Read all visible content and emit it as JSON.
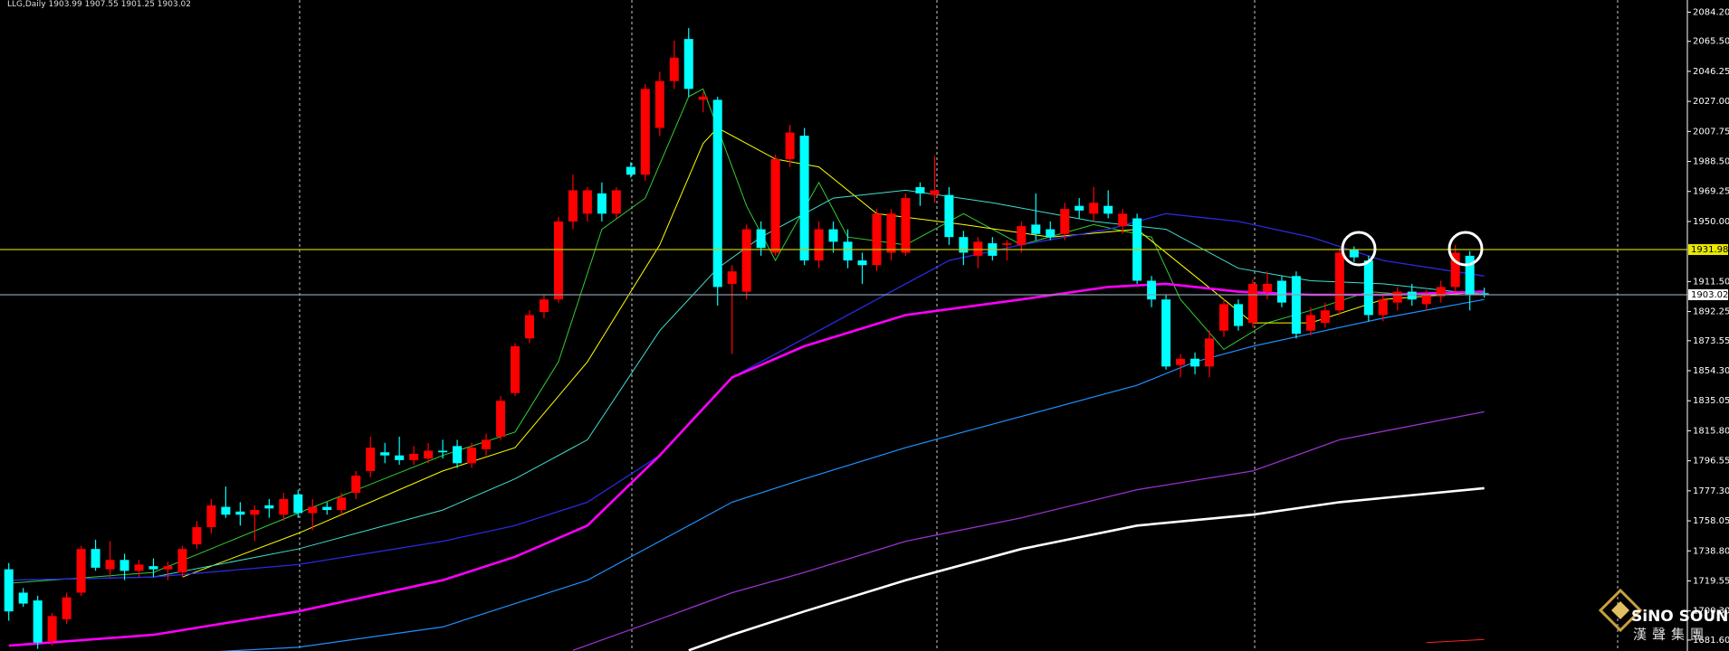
{
  "chart_data": {
    "type": "candlestick",
    "symbol": "LLG,Daily",
    "up_color": "#ff0000",
    "down_color": "#00ffff",
    "open": [
      1727,
      1712,
      1707,
      1681,
      1695,
      1712,
      1740,
      1727,
      1733,
      1726,
      1729,
      1727,
      1725,
      1743,
      1754,
      1767,
      1764,
      1762,
      1768,
      1762,
      1775,
      1763,
      1767,
      1765,
      1776,
      1790,
      1802,
      1800,
      1797,
      1798,
      1803,
      1806,
      1795,
      1804,
      1812,
      1840,
      1875,
      1892,
      1900,
      1950,
      1955,
      1968,
      1955,
      1985,
      1980,
      2010,
      2040,
      2067,
      2028,
      2028,
      1910,
      1905,
      1945,
      1930,
      1990,
      2005,
      1925,
      1945,
      1937,
      1925,
      1922,
      1930,
      1930,
      1972,
      1967,
      1967,
      1940,
      1928,
      1936,
      1935,
      1935,
      1948,
      1945,
      1942,
      1960,
      1955,
      1960,
      1947,
      1952,
      1912,
      1900,
      1858,
      1862,
      1857,
      1880,
      1897,
      1885,
      1905,
      1912,
      1915,
      1880,
      1885,
      1893,
      1932,
      1925,
      1890,
      1898,
      1905,
      1897,
      1902,
      1908,
      1928,
      1903.99
    ],
    "high": [
      1731,
      1715,
      1710,
      1699,
      1712,
      1742,
      1746,
      1745,
      1737,
      1733,
      1734,
      1732,
      1742,
      1758,
      1772,
      1780,
      1770,
      1768,
      1772,
      1776,
      1778,
      1772,
      1770,
      1776,
      1790,
      1812,
      1808,
      1812,
      1806,
      1808,
      1810,
      1810,
      1808,
      1814,
      1838,
      1872,
      1893,
      1903,
      1953,
      1980,
      1972,
      1975,
      1972,
      1988,
      2038,
      2046,
      2066,
      2074,
      2033,
      2030,
      1922,
      1948,
      1950,
      1993,
      2012,
      2010,
      1950,
      1950,
      1945,
      1930,
      1958,
      1958,
      1968,
      1975,
      1992,
      1972,
      1944,
      1940,
      1940,
      1938,
      1950,
      1968,
      1950,
      1962,
      1965,
      1972,
      1970,
      1958,
      1955,
      1915,
      1903,
      1865,
      1866,
      1880,
      1900,
      1900,
      1913,
      1918,
      1915,
      1918,
      1895,
      1898,
      1933,
      1934,
      1928,
      1903,
      1908,
      1910,
      1906,
      1912,
      1935,
      1931,
      1907.55
    ],
    "low": [
      1694,
      1703,
      1676,
      1678,
      1692,
      1710,
      1726,
      1722,
      1720,
      1722,
      1722,
      1720,
      1722,
      1740,
      1750,
      1760,
      1755,
      1745,
      1760,
      1758,
      1760,
      1752,
      1762,
      1762,
      1772,
      1786,
      1795,
      1794,
      1794,
      1795,
      1798,
      1792,
      1792,
      1800,
      1810,
      1838,
      1872,
      1888,
      1898,
      1945,
      1950,
      1950,
      1952,
      1978,
      1976,
      2005,
      2035,
      2030,
      2020,
      1896,
      1865,
      1900,
      1928,
      1928,
      1985,
      1922,
      1920,
      1930,
      1920,
      1910,
      1918,
      1925,
      1928,
      1960,
      1962,
      1935,
      1922,
      1920,
      1925,
      1925,
      1930,
      1938,
      1938,
      1938,
      1952,
      1950,
      1952,
      1942,
      1910,
      1895,
      1855,
      1850,
      1852,
      1850,
      1876,
      1880,
      1882,
      1900,
      1895,
      1875,
      1877,
      1882,
      1890,
      1924,
      1886,
      1886,
      1893,
      1896,
      1893,
      1898,
      1905,
      1893,
      1901.25
    ],
    "close": [
      1700,
      1705,
      1680,
      1697,
      1709,
      1740,
      1728,
      1733,
      1726,
      1730,
      1727,
      1729,
      1740,
      1754,
      1768,
      1762,
      1762,
      1765,
      1766,
      1772,
      1763,
      1767,
      1765,
      1773,
      1787,
      1805,
      1800,
      1797,
      1801,
      1803,
      1802,
      1795,
      1805,
      1810,
      1835,
      1870,
      1890,
      1900,
      1950,
      1970,
      1970,
      1955,
      1970,
      1980,
      2035,
      2040,
      2055,
      2035,
      2030,
      1908,
      1918,
      1945,
      1933,
      1990,
      2007,
      1925,
      1945,
      1937,
      1925,
      1922,
      1955,
      1955,
      1965,
      1968,
      1970,
      1940,
      1930,
      1937,
      1928,
      1936,
      1947,
      1942,
      1940,
      1958,
      1957,
      1962,
      1955,
      1955,
      1912,
      1900,
      1857,
      1862,
      1857,
      1875,
      1897,
      1883,
      1910,
      1910,
      1898,
      1878,
      1890,
      1893,
      1930,
      1927,
      1890,
      1900,
      1905,
      1900,
      1903,
      1908,
      1930,
      1903,
      1903.02
    ],
    "series": [
      {
        "color": "#32cd32",
        "width": 1,
        "x": [
          0,
          10,
          20,
          30,
          35,
          38,
          41,
          44,
          47,
          48,
          51,
          53,
          56,
          58,
          62,
          66,
          70,
          75,
          79,
          81,
          84,
          87,
          90,
          94,
          97,
          101,
          102
        ],
        "values": [
          1718,
          1725,
          1763,
          1800,
          1815,
          1860,
          1945,
          1965,
          2030,
          2035,
          1960,
          1925,
          1975,
          1940,
          1935,
          1955,
          1935,
          1948,
          1940,
          1900,
          1868,
          1885,
          1893,
          1905,
          1903,
          1905,
          1903
        ]
      },
      {
        "color": "#ffff00",
        "width": 1,
        "x": [
          12,
          20,
          30,
          35,
          40,
          45,
          48,
          49,
          53,
          56,
          60,
          66,
          72,
          78,
          82,
          86,
          90,
          95,
          102
        ],
        "values": [
          1722,
          1750,
          1790,
          1805,
          1860,
          1935,
          2000,
          2010,
          1990,
          1985,
          1955,
          1948,
          1940,
          1945,
          1915,
          1885,
          1885,
          1900,
          1905
        ]
      },
      {
        "color": "#40e0d0",
        "width": 1,
        "x": [
          0,
          10,
          20,
          30,
          35,
          40,
          45,
          49,
          52,
          57,
          62,
          68,
          75,
          80,
          85,
          90,
          95,
          102
        ],
        "values": [
          1720,
          1722,
          1740,
          1765,
          1785,
          1810,
          1880,
          1920,
          1940,
          1965,
          1970,
          1962,
          1950,
          1945,
          1920,
          1912,
          1910,
          1903
        ]
      },
      {
        "color": "#2a2ae0",
        "width": 1.3,
        "x": [
          0,
          10,
          20,
          30,
          35,
          40,
          45,
          50,
          55,
          60,
          65,
          70,
          76,
          80,
          85,
          90,
          95,
          102
        ],
        "values": [
          1720,
          1722,
          1730,
          1745,
          1755,
          1770,
          1800,
          1850,
          1875,
          1900,
          1925,
          1935,
          1945,
          1955,
          1950,
          1940,
          1925,
          1915
        ]
      },
      {
        "color": "#ff00ff",
        "width": 2.6,
        "x": [
          0,
          10,
          20,
          30,
          35,
          40,
          45,
          50,
          55,
          62,
          70,
          76,
          80,
          85,
          90,
          95,
          102
        ],
        "values": [
          1678,
          1685,
          1700,
          1720,
          1735,
          1755,
          1800,
          1850,
          1870,
          1890,
          1900,
          1908,
          1910,
          1905,
          1903,
          1903,
          1905
        ]
      },
      {
        "color": "#1e90ff",
        "width": 1.2,
        "x": [
          14,
          20,
          30,
          40,
          45,
          50,
          55,
          62,
          70,
          78,
          82,
          86,
          90,
          95,
          102
        ],
        "values": [
          1674,
          1677,
          1690,
          1720,
          1745,
          1770,
          1785,
          1805,
          1825,
          1845,
          1860,
          1870,
          1878,
          1888,
          1900
        ]
      },
      {
        "color": "#9932cc",
        "width": 1.3,
        "x": [
          39,
          45,
          50,
          55,
          62,
          70,
          78,
          86,
          92,
          102
        ],
        "values": [
          1675,
          1695,
          1712,
          1725,
          1745,
          1760,
          1778,
          1790,
          1810,
          1828
        ]
      },
      {
        "color": "#ffffff",
        "width": 2.6,
        "x": [
          47,
          50,
          55,
          62,
          70,
          78,
          86,
          92,
          102
        ],
        "values": [
          1675,
          1685,
          1700,
          1720,
          1740,
          1755,
          1762,
          1770,
          1779
        ]
      },
      {
        "color": "#ff2020",
        "width": 1,
        "x": [
          98,
          102
        ],
        "values": [
          1680,
          1682
        ]
      }
    ],
    "levels": [
      {
        "value": 1931.98,
        "color": "#c8c800"
      },
      {
        "value": 1903.02,
        "color": "#8a9aa8"
      }
    ],
    "ylim": [
      1674.6,
      2092.0
    ],
    "yticks": [
      {
        "value": 2084.2,
        "label": "2084.20"
      },
      {
        "value": 2065.5,
        "label": "2065.50"
      },
      2046.25,
      {
        "value": 2027,
        "label": "2027.00"
      },
      2007.75,
      {
        "value": 1988.5,
        "label": "1988.50"
      },
      1969.25,
      {
        "value": 1950,
        "label": "1950.00"
      },
      {
        "value": 1911.5,
        "label": "1911.50"
      },
      1892.25,
      1873.55,
      {
        "value": 1854.3,
        "label": "1854.30"
      },
      1835.05,
      {
        "value": 1815.8,
        "label": "1815.80"
      },
      1796.55,
      {
        "value": 1777.3,
        "label": "1777.30"
      },
      1758.05,
      {
        "value": 1738.8,
        "label": "1738.80"
      },
      1719.55,
      {
        "value": 1700.3,
        "label": "1700.30"
      },
      {
        "value": 1681.6,
        "label": "1681.60"
      }
    ]
  },
  "logo": {
    "name": "SiNO SOUND",
    "chinese": "漢聲集團"
  }
}
